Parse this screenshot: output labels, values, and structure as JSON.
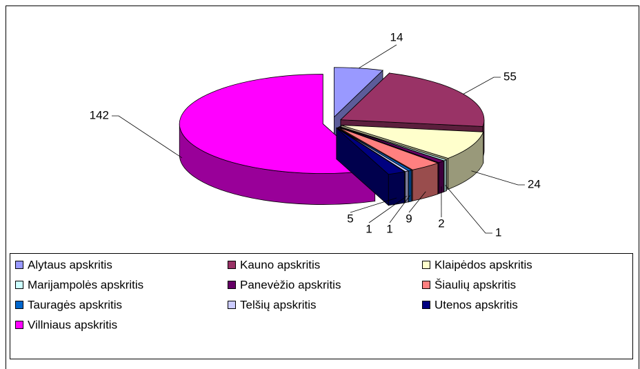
{
  "chart_data": {
    "type": "pie3d",
    "categories": [
      "Alytaus apskritis",
      "Kauno apskritis",
      "Klaipėdos apskritis",
      "Marijampolės apskritis",
      "Panevėžio apskritis",
      "Šiaulių apskritis",
      "Tauragės apskritis",
      "Telšių apskritis",
      "Utenos apskritis",
      "Villniaus apskritis"
    ],
    "values": [
      14,
      55,
      24,
      1,
      2,
      9,
      1,
      1,
      5,
      142
    ],
    "colors": [
      "#9999ff",
      "#993366",
      "#ffffcc",
      "#ccffff",
      "#660066",
      "#ff8080",
      "#0066cc",
      "#ccccff",
      "#000080",
      "#ff00ff"
    ]
  }
}
